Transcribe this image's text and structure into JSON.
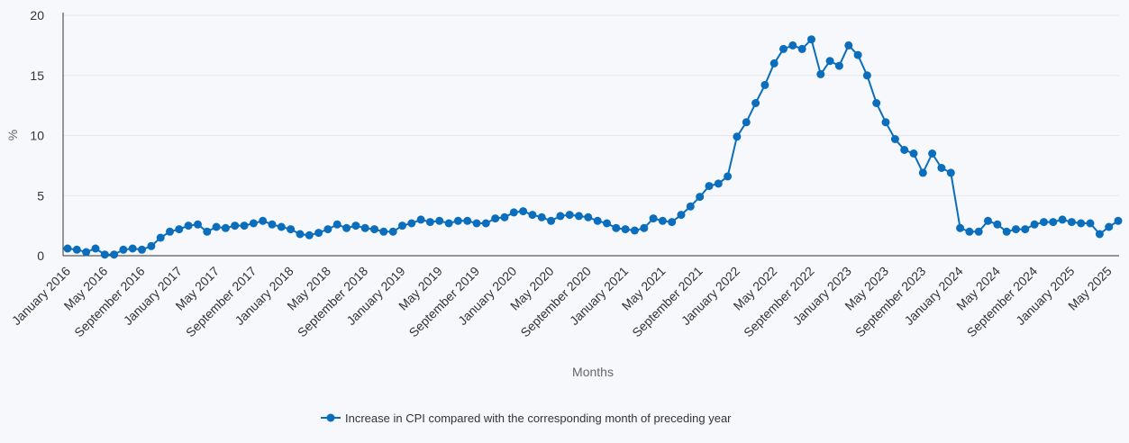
{
  "chart_data": {
    "type": "line",
    "title": "",
    "xlabel": "Months",
    "ylabel": "%",
    "ylim": [
      0,
      20
    ],
    "yticks": [
      0,
      5,
      10,
      15,
      20
    ],
    "grid": true,
    "legend_position": "bottom-center",
    "x_tick_labels": [
      "January 2016",
      "May 2016",
      "September 2016",
      "January 2017",
      "May 2017",
      "September 2017",
      "January 2018",
      "May 2018",
      "September 2018",
      "January 2019",
      "May 2019",
      "September 2019",
      "January 2020",
      "May 2020",
      "September 2020",
      "January 2021",
      "May 2021",
      "September 2021",
      "January 2022",
      "May 2022",
      "September 2022",
      "January 2023",
      "May 2023",
      "September 2023",
      "January 2024",
      "May 2024",
      "September 2024",
      "January 2025",
      "May 2025"
    ],
    "series": [
      {
        "name": "Increase in CPI compared with the corresponding month of preceding year",
        "color": "#0a6ebd",
        "start": "January 2016",
        "values": [
          0.6,
          0.5,
          0.3,
          0.6,
          0.1,
          0.1,
          0.5,
          0.6,
          0.5,
          0.8,
          1.5,
          2.0,
          2.2,
          2.5,
          2.6,
          2.0,
          2.4,
          2.3,
          2.5,
          2.5,
          2.7,
          2.9,
          2.6,
          2.4,
          2.2,
          1.8,
          1.7,
          1.9,
          2.2,
          2.6,
          2.3,
          2.5,
          2.3,
          2.2,
          2.0,
          2.0,
          2.5,
          2.7,
          3.0,
          2.8,
          2.9,
          2.7,
          2.9,
          2.9,
          2.7,
          2.7,
          3.1,
          3.2,
          3.6,
          3.7,
          3.4,
          3.2,
          2.9,
          3.3,
          3.4,
          3.3,
          3.2,
          2.9,
          2.7,
          2.3,
          2.2,
          2.1,
          2.3,
          3.1,
          2.9,
          2.8,
          3.4,
          4.1,
          4.9,
          5.8,
          6.0,
          6.6,
          9.9,
          11.1,
          12.7,
          14.2,
          16.0,
          17.2,
          17.5,
          17.2,
          18.0,
          15.1,
          16.2,
          15.8,
          17.5,
          16.7,
          15.0,
          12.7,
          11.1,
          9.7,
          8.8,
          8.5,
          6.9,
          8.5,
          7.3,
          6.9,
          2.3,
          2.0,
          2.0,
          2.9,
          2.6,
          2.0,
          2.2,
          2.2,
          2.6,
          2.8,
          2.8,
          3.0,
          2.8,
          2.7,
          2.7,
          1.8,
          2.4,
          2.9
        ]
      }
    ]
  }
}
